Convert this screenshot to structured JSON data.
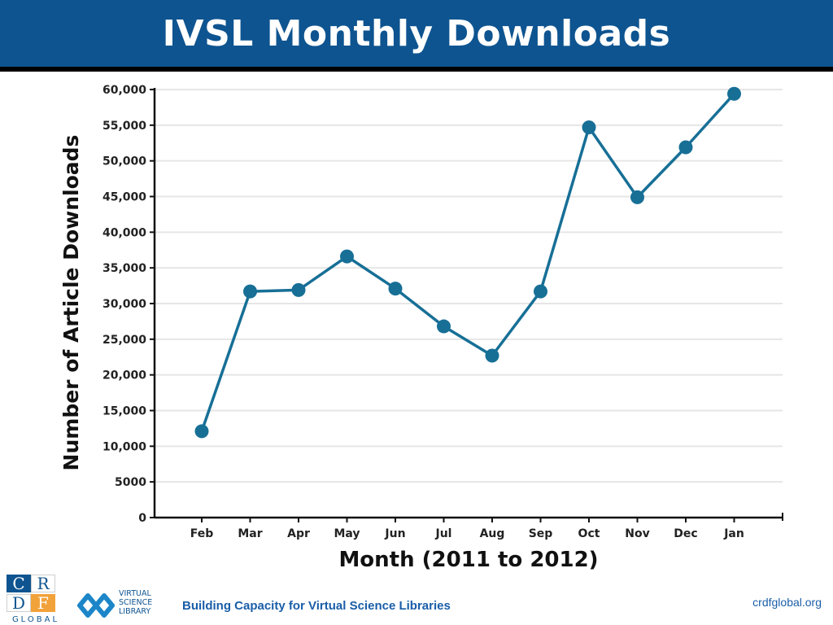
{
  "header": {
    "title": "IVSL Monthly Downloads"
  },
  "footer": {
    "crdf_logo": {
      "letters": [
        "C",
        "R",
        "D",
        "F"
      ],
      "word": "GLOBAL"
    },
    "vsl_logo": {
      "lines": [
        "VIRTUAL",
        "SCIENCE",
        "LIBRARY"
      ]
    },
    "tagline": "Building Capacity for Virtual Science Libraries",
    "site": "crdfglobal.org"
  },
  "colors": {
    "header_bg": "#0e5490",
    "series": "#176f96",
    "grid": "#e6e6e6"
  },
  "chart_data": {
    "type": "line",
    "title": "",
    "xlabel": "Month (2011 to 2012)",
    "ylabel": "Number of Article Downloads",
    "categories": [
      "Feb",
      "Mar",
      "Apr",
      "May",
      "Jun",
      "Jul",
      "Aug",
      "Sep",
      "Oct",
      "Nov",
      "Dec",
      "Jan"
    ],
    "series": [
      {
        "values": [
          12100,
          31700,
          31900,
          36600,
          32100,
          26800,
          22700,
          31700,
          54700,
          44900,
          51900,
          59400
        ]
      }
    ],
    "ylim": [
      0,
      60000
    ],
    "yticks": [
      0,
      5000,
      10000,
      15000,
      20000,
      25000,
      30000,
      35000,
      40000,
      45000,
      50000,
      55000,
      60000
    ],
    "ytick_labels": [
      "0",
      "5000",
      "10,000",
      "15,000",
      "20,000",
      "25,000",
      "30,000",
      "35,000",
      "40,000",
      "45,000",
      "50,000",
      "55,000",
      "60,000"
    ],
    "grid": true,
    "legend": "none"
  }
}
